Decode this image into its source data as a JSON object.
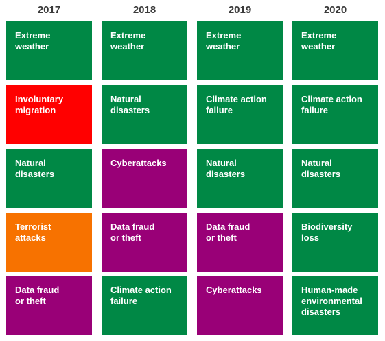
{
  "colors": {
    "environmental": "#008845",
    "societal": "#ff0000",
    "geopolitical": "#f77200",
    "technological": "#990077"
  },
  "chart_data": {
    "type": "table",
    "years": [
      {
        "label": "2017",
        "items": [
          {
            "text": "Extreme\nweather",
            "category": "environmental"
          },
          {
            "text": "Involuntary\nmigration",
            "category": "societal"
          },
          {
            "text": "Natural\ndisasters",
            "category": "environmental"
          },
          {
            "text": "Terrorist\nattacks",
            "category": "geopolitical"
          },
          {
            "text": "Data fraud\nor theft",
            "category": "technological"
          }
        ]
      },
      {
        "label": "2018",
        "items": [
          {
            "text": "Extreme\nweather",
            "category": "environmental"
          },
          {
            "text": "Natural\ndisasters",
            "category": "environmental"
          },
          {
            "text": "Cyberattacks",
            "category": "technological"
          },
          {
            "text": "Data fraud\nor theft",
            "category": "technological"
          },
          {
            "text": "Climate action\nfailure",
            "category": "environmental"
          }
        ]
      },
      {
        "label": "2019",
        "items": [
          {
            "text": "Extreme\nweather",
            "category": "environmental"
          },
          {
            "text": "Climate action\nfailure",
            "category": "environmental"
          },
          {
            "text": "Natural\ndisasters",
            "category": "environmental"
          },
          {
            "text": "Data fraud\nor theft",
            "category": "technological"
          },
          {
            "text": "Cyberattacks",
            "category": "technological"
          }
        ]
      },
      {
        "label": "2020",
        "items": [
          {
            "text": "Extreme\nweather",
            "category": "environmental"
          },
          {
            "text": "Climate action\nfailure",
            "category": "environmental"
          },
          {
            "text": "Natural\ndisasters",
            "category": "environmental"
          },
          {
            "text": "Biodiversity loss",
            "category": "environmental"
          },
          {
            "text": "Human-made\nenvironmental\ndisasters",
            "category": "environmental"
          }
        ]
      }
    ]
  }
}
